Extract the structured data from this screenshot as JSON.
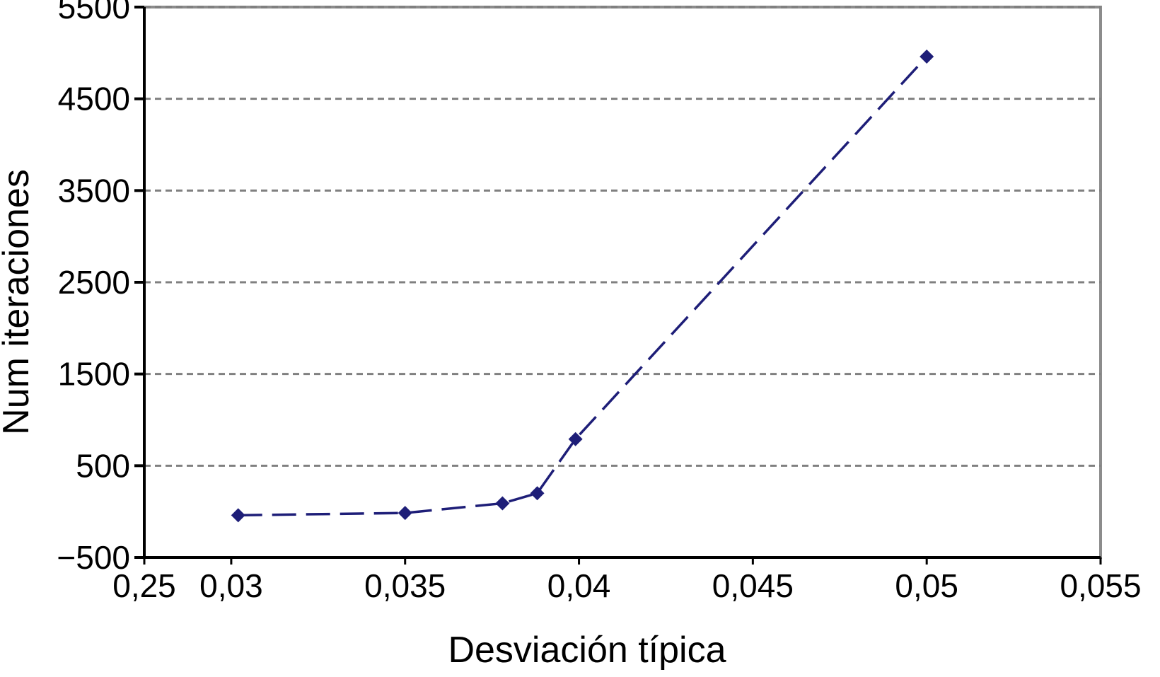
{
  "chart_data": {
    "type": "line",
    "title": "",
    "xlabel": "Desviación típica",
    "ylabel": "Num iteraciones",
    "x_tick_labels": [
      "0,25",
      "0,03",
      "0,035",
      "0,04",
      "0,045",
      "0,05",
      "0,055"
    ],
    "y_tick_labels": [
      "5500",
      "4500",
      "3500",
      "2500",
      "1500",
      "500",
      "−500"
    ],
    "y_ticks": [
      5500,
      4500,
      3500,
      2500,
      1500,
      500,
      -500
    ],
    "ylim": [
      -500,
      5500
    ],
    "grid": true,
    "legend": "none",
    "series": [
      {
        "x": [
          0.0302,
          0.035,
          0.0378,
          0.0388,
          0.0399,
          0.05
        ],
        "y": [
          -40,
          -15,
          90,
          200,
          790,
          4960
        ],
        "line_style": "dashed",
        "marker": "diamond",
        "color": "#1e1e78"
      }
    ],
    "colors": {
      "series": "#1e1e78",
      "grid": "#808080",
      "axis": "#000000",
      "frame": "#8c8c8c"
    }
  }
}
